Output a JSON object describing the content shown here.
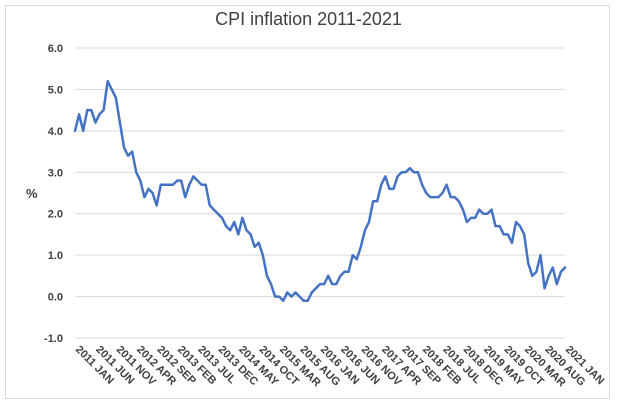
{
  "chart_data": {
    "type": "line",
    "title": "CPI inflation 2011-2021",
    "xlabel": "",
    "ylabel": "%",
    "ylim": [
      -1.0,
      6.0
    ],
    "yticks": [
      "6.0",
      "5.0",
      "4.0",
      "3.0",
      "2.0",
      "1.0",
      "0.0",
      "-1.0"
    ],
    "grid": "horizontal",
    "x_tick_labels": [
      "2011 JAN",
      "2011 JUN",
      "2011 NOV",
      "2012 APR",
      "2012 SEP",
      "2013 FEB",
      "2013 JUL",
      "2013 DEC",
      "2014 MAY",
      "2014 OCT",
      "2015 MAR",
      "2015 AUG",
      "2016 JAN",
      "2016 JUN",
      "2016 NOV",
      "2017 APR",
      "2017 SEP",
      "2018 FEB",
      "2018 JUL",
      "2018 DEC",
      "2019 MAY",
      "2019 OCT",
      "2020 MAR",
      "2020 AUG",
      "2021 JAN"
    ],
    "series": [
      {
        "color": "#4472c4",
        "x": [
          "2011-01",
          "2011-02",
          "2011-03",
          "2011-04",
          "2011-05",
          "2011-06",
          "2011-07",
          "2011-08",
          "2011-09",
          "2011-10",
          "2011-11",
          "2011-12",
          "2012-01",
          "2012-02",
          "2012-03",
          "2012-04",
          "2012-05",
          "2012-06",
          "2012-07",
          "2012-08",
          "2012-09",
          "2012-10",
          "2012-11",
          "2012-12",
          "2013-01",
          "2013-02",
          "2013-03",
          "2013-04",
          "2013-05",
          "2013-06",
          "2013-07",
          "2013-08",
          "2013-09",
          "2013-10",
          "2013-11",
          "2013-12",
          "2014-01",
          "2014-02",
          "2014-03",
          "2014-04",
          "2014-05",
          "2014-06",
          "2014-07",
          "2014-08",
          "2014-09",
          "2014-10",
          "2014-11",
          "2014-12",
          "2015-01",
          "2015-02",
          "2015-03",
          "2015-04",
          "2015-05",
          "2015-06",
          "2015-07",
          "2015-08",
          "2015-09",
          "2015-10",
          "2015-11",
          "2015-12",
          "2016-01",
          "2016-02",
          "2016-03",
          "2016-04",
          "2016-05",
          "2016-06",
          "2016-07",
          "2016-08",
          "2016-09",
          "2016-10",
          "2016-11",
          "2016-12",
          "2017-01",
          "2017-02",
          "2017-03",
          "2017-04",
          "2017-05",
          "2017-06",
          "2017-07",
          "2017-08",
          "2017-09",
          "2017-10",
          "2017-11",
          "2017-12",
          "2018-01",
          "2018-02",
          "2018-03",
          "2018-04",
          "2018-05",
          "2018-06",
          "2018-07",
          "2018-08",
          "2018-09",
          "2018-10",
          "2018-11",
          "2018-12",
          "2019-01",
          "2019-02",
          "2019-03",
          "2019-04",
          "2019-05",
          "2019-06",
          "2019-07",
          "2019-08",
          "2019-09",
          "2019-10",
          "2019-11",
          "2019-12",
          "2020-01",
          "2020-02",
          "2020-03",
          "2020-04",
          "2020-05",
          "2020-06",
          "2020-07",
          "2020-08",
          "2020-09",
          "2020-10",
          "2020-11",
          "2020-12",
          "2021-01"
        ],
        "values": [
          4.0,
          4.4,
          4.0,
          4.5,
          4.5,
          4.2,
          4.4,
          4.5,
          5.2,
          5.0,
          4.8,
          4.2,
          3.6,
          3.4,
          3.5,
          3.0,
          2.8,
          2.4,
          2.6,
          2.5,
          2.2,
          2.7,
          2.7,
          2.7,
          2.7,
          2.8,
          2.8,
          2.4,
          2.7,
          2.9,
          2.8,
          2.7,
          2.7,
          2.2,
          2.1,
          2.0,
          1.9,
          1.7,
          1.6,
          1.8,
          1.5,
          1.9,
          1.6,
          1.5,
          1.2,
          1.3,
          1.0,
          0.5,
          0.3,
          0.0,
          0.0,
          -0.1,
          0.1,
          0.0,
          0.1,
          0.0,
          -0.1,
          -0.1,
          0.1,
          0.2,
          0.3,
          0.3,
          0.5,
          0.3,
          0.3,
          0.5,
          0.6,
          0.6,
          1.0,
          0.9,
          1.2,
          1.6,
          1.8,
          2.3,
          2.3,
          2.7,
          2.9,
          2.6,
          2.6,
          2.9,
          3.0,
          3.0,
          3.1,
          3.0,
          3.0,
          2.7,
          2.5,
          2.4,
          2.4,
          2.4,
          2.5,
          2.7,
          2.4,
          2.4,
          2.3,
          2.1,
          1.8,
          1.9,
          1.9,
          2.1,
          2.0,
          2.0,
          2.1,
          1.7,
          1.7,
          1.5,
          1.5,
          1.3,
          1.8,
          1.7,
          1.5,
          0.8,
          0.5,
          0.6,
          1.0,
          0.2,
          0.5,
          0.7,
          0.3,
          0.6,
          0.7
        ]
      }
    ]
  }
}
